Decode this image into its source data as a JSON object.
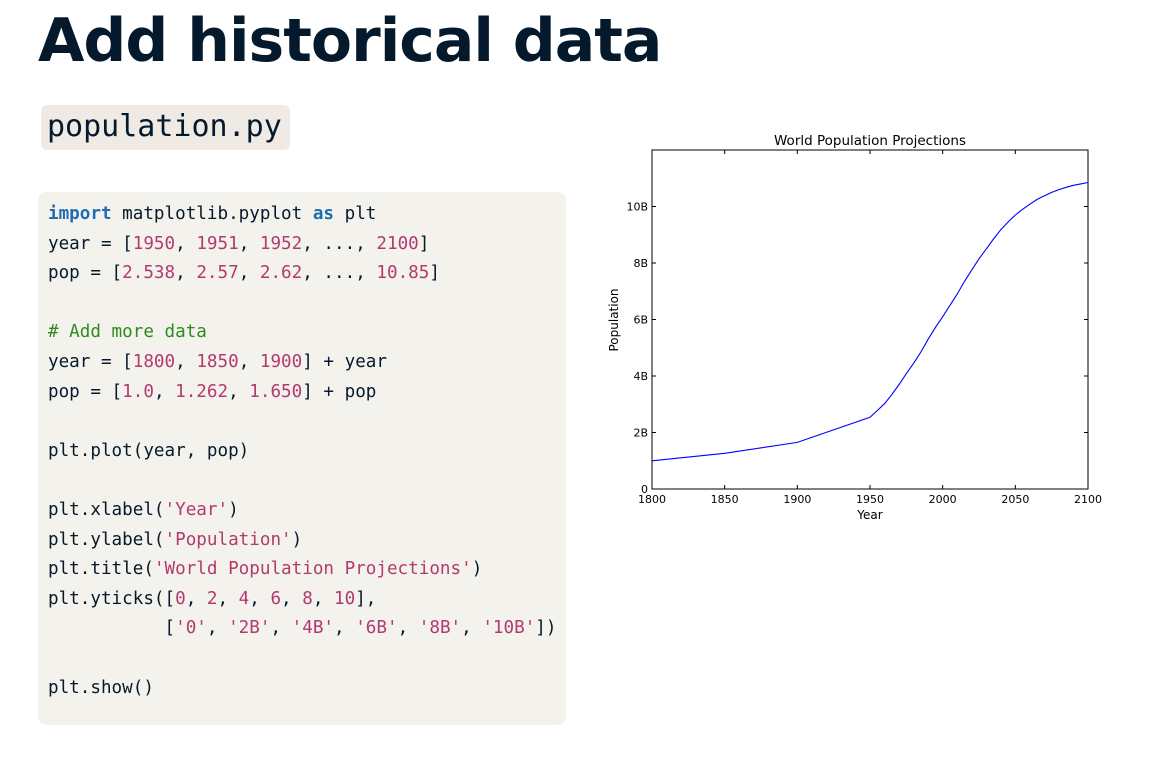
{
  "slide": {
    "title": "Add historical data",
    "file_name": "population.py"
  },
  "code": {
    "lines": [
      [
        {
          "t": "import",
          "c": "kw"
        },
        {
          "t": " matplotlib.pyplot "
        },
        {
          "t": "as",
          "c": "kw"
        },
        {
          "t": " plt"
        }
      ],
      [
        {
          "t": "year = ["
        },
        {
          "t": "1950",
          "c": "num"
        },
        {
          "t": ", "
        },
        {
          "t": "1951",
          "c": "num"
        },
        {
          "t": ", "
        },
        {
          "t": "1952",
          "c": "num"
        },
        {
          "t": ", ..., "
        },
        {
          "t": "2100",
          "c": "num"
        },
        {
          "t": "]"
        }
      ],
      [
        {
          "t": "pop = ["
        },
        {
          "t": "2.538",
          "c": "num"
        },
        {
          "t": ", "
        },
        {
          "t": "2.57",
          "c": "num"
        },
        {
          "t": ", "
        },
        {
          "t": "2.62",
          "c": "num"
        },
        {
          "t": ", ..., "
        },
        {
          "t": "10.85",
          "c": "num"
        },
        {
          "t": "]"
        }
      ],
      [],
      [
        {
          "t": "# Add more data",
          "c": "cmt"
        }
      ],
      [
        {
          "t": "year = ["
        },
        {
          "t": "1800",
          "c": "num"
        },
        {
          "t": ", "
        },
        {
          "t": "1850",
          "c": "num"
        },
        {
          "t": ", "
        },
        {
          "t": "1900",
          "c": "num"
        },
        {
          "t": "] + year"
        }
      ],
      [
        {
          "t": "pop = ["
        },
        {
          "t": "1.0",
          "c": "num"
        },
        {
          "t": ", "
        },
        {
          "t": "1.262",
          "c": "num"
        },
        {
          "t": ", "
        },
        {
          "t": "1.650",
          "c": "num"
        },
        {
          "t": "] + pop"
        }
      ],
      [],
      [
        {
          "t": "plt.plot(year, pop)"
        }
      ],
      [],
      [
        {
          "t": "plt.xlabel("
        },
        {
          "t": "'Year'",
          "c": "str"
        },
        {
          "t": ")"
        }
      ],
      [
        {
          "t": "plt.ylabel("
        },
        {
          "t": "'Population'",
          "c": "str"
        },
        {
          "t": ")"
        }
      ],
      [
        {
          "t": "plt.title("
        },
        {
          "t": "'World Population Projections'",
          "c": "str"
        },
        {
          "t": ")"
        }
      ],
      [
        {
          "t": "plt.yticks(["
        },
        {
          "t": "0",
          "c": "num"
        },
        {
          "t": ", "
        },
        {
          "t": "2",
          "c": "num"
        },
        {
          "t": ", "
        },
        {
          "t": "4",
          "c": "num"
        },
        {
          "t": ", "
        },
        {
          "t": "6",
          "c": "num"
        },
        {
          "t": ", "
        },
        {
          "t": "8",
          "c": "num"
        },
        {
          "t": ", "
        },
        {
          "t": "10",
          "c": "num"
        },
        {
          "t": "],"
        }
      ],
      [
        {
          "t": "           ["
        },
        {
          "t": "'0'",
          "c": "str"
        },
        {
          "t": ", "
        },
        {
          "t": "'2B'",
          "c": "str"
        },
        {
          "t": ", "
        },
        {
          "t": "'4B'",
          "c": "str"
        },
        {
          "t": ", "
        },
        {
          "t": "'6B'",
          "c": "str"
        },
        {
          "t": ", "
        },
        {
          "t": "'8B'",
          "c": "str"
        },
        {
          "t": ", "
        },
        {
          "t": "'10B'",
          "c": "str"
        },
        {
          "t": "])"
        }
      ],
      [],
      [
        {
          "t": "plt.show()"
        }
      ]
    ]
  },
  "colors": {
    "title": "#05192d",
    "keyword": "#1e6cb4",
    "number": "#b23a6f",
    "string": "#b23a6f",
    "comment": "#2f8a20",
    "code_bg": "#f4f2ec",
    "line": "#0000ff"
  },
  "chart_data": {
    "type": "line",
    "title": "World Population Projections",
    "xlabel": "Year",
    "ylabel": "Population",
    "xlim": [
      1800,
      2100
    ],
    "ylim": [
      0,
      12
    ],
    "xticks": [
      1800,
      1850,
      1900,
      1950,
      2000,
      2050,
      2100
    ],
    "yticks": [
      0,
      2,
      4,
      6,
      8,
      10
    ],
    "ytick_labels": [
      "0",
      "2B",
      "4B",
      "6B",
      "8B",
      "10B"
    ],
    "grid": false,
    "series": [
      {
        "x": [
          1800,
          1850,
          1900,
          1950,
          1955,
          1960,
          1965,
          1970,
          1975,
          1980,
          1985,
          1990,
          1995,
          2000,
          2005,
          2010,
          2015,
          2020,
          2025,
          2030,
          2035,
          2040,
          2045,
          2050,
          2055,
          2060,
          2065,
          2070,
          2075,
          2080,
          2085,
          2090,
          2095,
          2100
        ],
        "y": [
          1.0,
          1.262,
          1.65,
          2.538,
          2.78,
          3.02,
          3.34,
          3.7,
          4.08,
          4.45,
          4.85,
          5.3,
          5.72,
          6.1,
          6.5,
          6.9,
          7.35,
          7.75,
          8.15,
          8.5,
          8.85,
          9.18,
          9.45,
          9.7,
          9.9,
          10.08,
          10.25,
          10.38,
          10.5,
          10.6,
          10.68,
          10.75,
          10.8,
          10.85
        ]
      }
    ]
  }
}
